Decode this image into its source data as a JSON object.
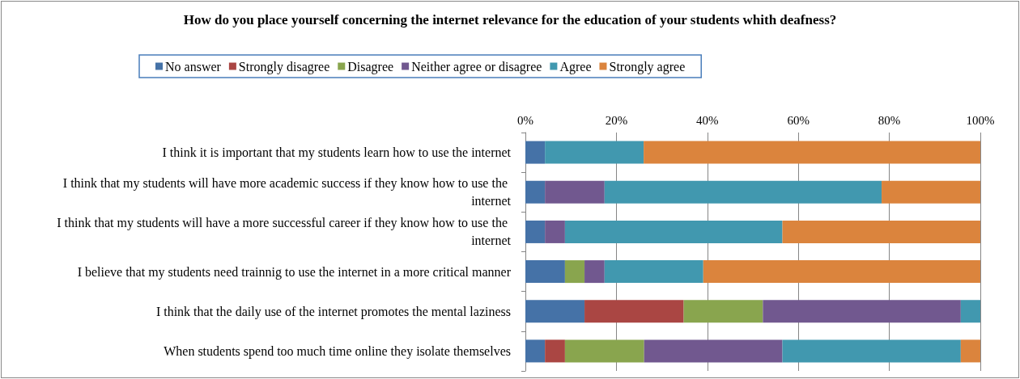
{
  "chart_data": {
    "type": "bar",
    "orientation": "horizontal",
    "stacked": true,
    "title": "How do you place yourself concerning the internet relevance for the education of your students whith deafness?",
    "categories": [
      "I think it is important that my students learn how to use the internet",
      "I think that my students will have more academic success if they know how to use the internet",
      "I think that my students will have a more successful career if they know how to use the internet",
      "I believe that my students need trainnig to use the internet in a more critical manner",
      "I think that the daily use of the internet promotes the mental laziness",
      "When students spend too much time online they isolate themselves"
    ],
    "series": [
      {
        "name": "No answer",
        "color": "#4572a7",
        "values": [
          4.3,
          4.3,
          4.3,
          8.7,
          13.0,
          4.3
        ]
      },
      {
        "name": "Strongly disagree",
        "color": "#aa4643",
        "values": [
          0,
          0,
          0,
          0,
          21.8,
          4.4
        ]
      },
      {
        "name": "Disagree",
        "color": "#89a54e",
        "values": [
          0,
          0,
          0,
          4.3,
          17.4,
          17.4
        ]
      },
      {
        "name": "Neither agree or disagree",
        "color": "#71588f",
        "values": [
          0,
          13.1,
          4.4,
          4.4,
          43.5,
          30.4
        ]
      },
      {
        "name": "Agree",
        "color": "#4198af",
        "values": [
          21.7,
          60.9,
          47.8,
          21.7,
          4.3,
          39.2
        ]
      },
      {
        "name": "Strongly agree",
        "color": "#db843d",
        "values": [
          74.0,
          21.7,
          43.5,
          60.9,
          0,
          4.3
        ]
      }
    ],
    "xlim": [
      0,
      100
    ],
    "xticks": [
      {
        "value": 0,
        "label": "0%"
      },
      {
        "value": 20,
        "label": "20%"
      },
      {
        "value": 40,
        "label": "40%"
      },
      {
        "value": 60,
        "label": "60%"
      },
      {
        "value": 80,
        "label": "80%"
      },
      {
        "value": 100,
        "label": "100%"
      }
    ],
    "grid": "x",
    "legend": "top"
  }
}
